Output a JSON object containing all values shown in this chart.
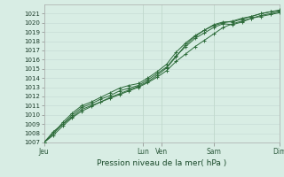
{
  "title": "",
  "xlabel": "Pression niveau de la mer( hPa )",
  "bg_color": "#d8ede4",
  "grid_color_h": "#c8ddd6",
  "grid_color_v": "#c0d8cc",
  "line_color": "#2d6b3a",
  "ylim": [
    1007,
    1022
  ],
  "yticks": [
    1007,
    1008,
    1009,
    1010,
    1011,
    1012,
    1013,
    1014,
    1015,
    1016,
    1017,
    1018,
    1019,
    1020,
    1021
  ],
  "day_labels": [
    "Jeu",
    "Lun",
    "Ven",
    "Sam",
    "Dim"
  ],
  "day_positions": [
    0.0,
    0.42,
    0.5,
    0.72,
    1.0
  ],
  "lines": [
    {
      "x": [
        0.0,
        0.04,
        0.08,
        0.12,
        0.16,
        0.2,
        0.24,
        0.28,
        0.32,
        0.36,
        0.4,
        0.44,
        0.48,
        0.52,
        0.56,
        0.6,
        0.64,
        0.68,
        0.72,
        0.76,
        0.8,
        0.84,
        0.88,
        0.92,
        0.96,
        1.0
      ],
      "y": [
        1007.0,
        1008.2,
        1009.0,
        1009.8,
        1010.6,
        1011.0,
        1011.4,
        1011.8,
        1012.2,
        1012.6,
        1013.0,
        1013.5,
        1014.1,
        1014.8,
        1015.8,
        1016.6,
        1017.4,
        1018.1,
        1018.8,
        1019.5,
        1019.9,
        1020.2,
        1020.5,
        1020.7,
        1020.9,
        1021.1
      ]
    },
    {
      "x": [
        0.0,
        0.04,
        0.08,
        0.12,
        0.16,
        0.2,
        0.24,
        0.28,
        0.32,
        0.36,
        0.4,
        0.44,
        0.48,
        0.52,
        0.56,
        0.6,
        0.64,
        0.68,
        0.72,
        0.76,
        0.8,
        0.84,
        0.88,
        0.92,
        0.96,
        1.0
      ],
      "y": [
        1007.0,
        1008.0,
        1009.0,
        1010.0,
        1010.8,
        1011.2,
        1011.7,
        1012.1,
        1012.6,
        1012.9,
        1013.2,
        1013.8,
        1014.5,
        1015.2,
        1016.4,
        1017.4,
        1018.3,
        1018.9,
        1019.5,
        1019.9,
        1019.8,
        1020.1,
        1020.5,
        1020.8,
        1021.0,
        1021.2
      ]
    },
    {
      "x": [
        0.0,
        0.04,
        0.08,
        0.12,
        0.16,
        0.2,
        0.24,
        0.28,
        0.32,
        0.36,
        0.4,
        0.44,
        0.48,
        0.52,
        0.56,
        0.6,
        0.64,
        0.68,
        0.72,
        0.76,
        0.8,
        0.84,
        0.88,
        0.92,
        0.96,
        1.0
      ],
      "y": [
        1007.0,
        1008.0,
        1009.2,
        1010.2,
        1011.0,
        1011.4,
        1011.9,
        1012.4,
        1012.9,
        1013.2,
        1013.4,
        1014.0,
        1014.7,
        1015.5,
        1016.8,
        1017.8,
        1018.6,
        1019.2,
        1019.7,
        1020.0,
        1020.2,
        1020.5,
        1020.7,
        1021.0,
        1021.2,
        1021.4
      ]
    },
    {
      "x": [
        0.0,
        0.04,
        0.08,
        0.12,
        0.16,
        0.2,
        0.24,
        0.28,
        0.32,
        0.36,
        0.4,
        0.44,
        0.48,
        0.52,
        0.56,
        0.6,
        0.64,
        0.68,
        0.72,
        0.76,
        0.8,
        0.84,
        0.88,
        0.92,
        0.96,
        1.0
      ],
      "y": [
        1007.0,
        1007.8,
        1008.8,
        1009.7,
        1010.4,
        1010.9,
        1011.4,
        1011.9,
        1012.3,
        1012.7,
        1013.1,
        1013.6,
        1014.3,
        1015.1,
        1016.3,
        1017.6,
        1018.5,
        1019.2,
        1019.8,
        1020.1,
        1020.1,
        1020.4,
        1020.7,
        1021.0,
        1021.2,
        1021.3
      ]
    }
  ]
}
